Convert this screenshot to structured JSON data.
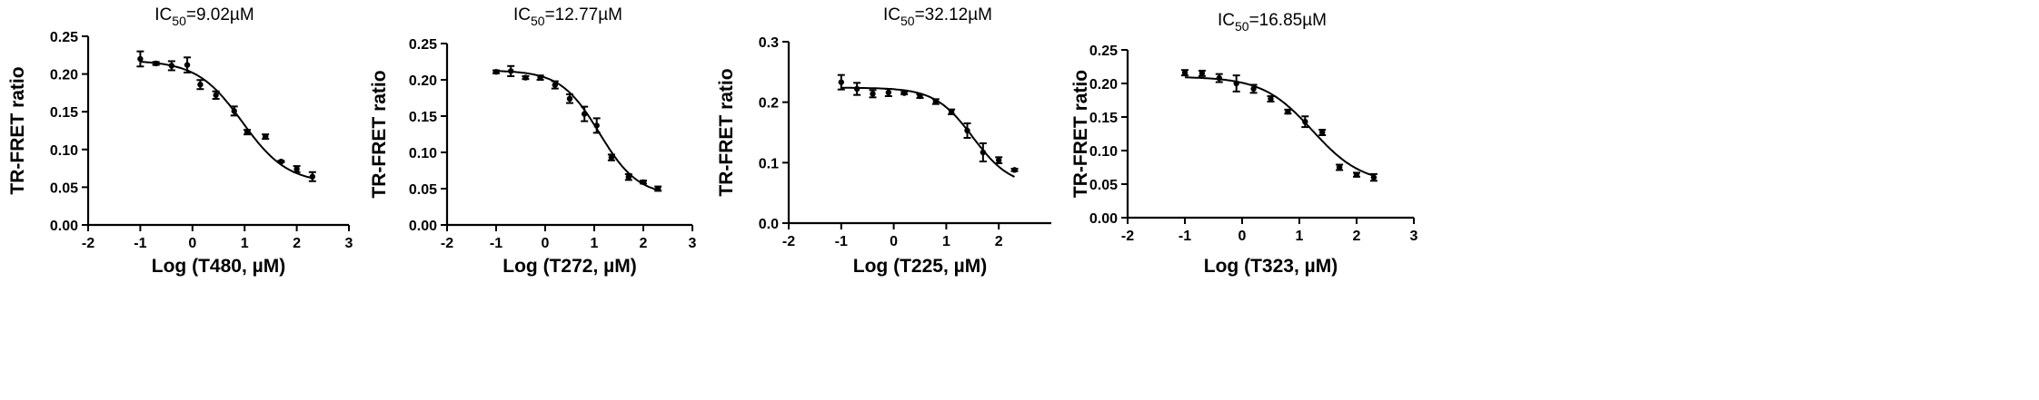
{
  "chart_data": [
    {
      "type": "scatter",
      "title": {
        "prefix": "IC",
        "sub": "50",
        "suffix": "=9.02µM"
      },
      "xlabel": "Log (T480, µM)",
      "ylabel": "TR-FRET ratio",
      "xlim": [
        -2,
        3
      ],
      "ylim": [
        0,
        0.25
      ],
      "xticks": [
        -2,
        -1,
        0,
        1,
        2,
        3
      ],
      "yticks": [
        0.0,
        0.05,
        0.1,
        0.15,
        0.2,
        0.25
      ],
      "ytick_labels": [
        "0.00",
        "0.05",
        "0.10",
        "0.15",
        "0.20",
        "0.25"
      ],
      "points": [
        {
          "x": -1.0,
          "y": 0.22,
          "err": 0.01
        },
        {
          "x": -0.7,
          "y": 0.214,
          "err": 0.002
        },
        {
          "x": -0.4,
          "y": 0.211,
          "err": 0.006
        },
        {
          "x": -0.1,
          "y": 0.212,
          "err": 0.01
        },
        {
          "x": 0.15,
          "y": 0.186,
          "err": 0.006
        },
        {
          "x": 0.45,
          "y": 0.172,
          "err": 0.005
        },
        {
          "x": 0.8,
          "y": 0.151,
          "err": 0.006
        },
        {
          "x": 1.05,
          "y": 0.123,
          "err": 0.003
        },
        {
          "x": 1.4,
          "y": 0.117,
          "err": 0.003
        },
        {
          "x": 1.7,
          "y": 0.084,
          "err": 0.001
        },
        {
          "x": 2.0,
          "y": 0.074,
          "err": 0.004
        },
        {
          "x": 2.3,
          "y": 0.064,
          "err": 0.006
        }
      ],
      "fit": {
        "top": 0.218,
        "bottom": 0.055,
        "logIC50": 0.955,
        "hill": 1.0
      }
    },
    {
      "type": "scatter",
      "title": {
        "prefix": "IC",
        "sub": "50",
        "suffix": "=12.77µM"
      },
      "xlabel": "Log (T272, µM)",
      "ylabel": "TR-FRET ratio",
      "xlim": [
        -2,
        3
      ],
      "ylim": [
        0,
        0.25
      ],
      "xticks": [
        -2,
        -1,
        0,
        1,
        2,
        3
      ],
      "yticks": [
        0.0,
        0.05,
        0.1,
        0.15,
        0.2,
        0.25
      ],
      "ytick_labels": [
        "0.00",
        "0.05",
        "0.10",
        "0.15",
        "0.20",
        "0.25"
      ],
      "points": [
        {
          "x": -1.0,
          "y": 0.211,
          "err": 0.002
        },
        {
          "x": -0.7,
          "y": 0.212,
          "err": 0.007
        },
        {
          "x": -0.4,
          "y": 0.203,
          "err": 0.002
        },
        {
          "x": -0.1,
          "y": 0.203,
          "err": 0.003
        },
        {
          "x": 0.2,
          "y": 0.193,
          "err": 0.005
        },
        {
          "x": 0.5,
          "y": 0.174,
          "err": 0.006
        },
        {
          "x": 0.8,
          "y": 0.153,
          "err": 0.01
        },
        {
          "x": 1.05,
          "y": 0.137,
          "err": 0.01
        },
        {
          "x": 1.35,
          "y": 0.093,
          "err": 0.004
        },
        {
          "x": 1.7,
          "y": 0.066,
          "err": 0.004
        },
        {
          "x": 2.0,
          "y": 0.059,
          "err": 0.002
        },
        {
          "x": 2.3,
          "y": 0.05,
          "err": 0.003
        }
      ],
      "fit": {
        "top": 0.213,
        "bottom": 0.04,
        "logIC50": 1.106,
        "hill": 1.1
      }
    },
    {
      "type": "scatter",
      "title": {
        "prefix": "IC",
        "sub": "50",
        "suffix": "=32.12µM"
      },
      "xlabel": "Log (T225, µM)",
      "ylabel": "TR-FRET ratio",
      "xlim": [
        -2,
        3
      ],
      "ylim": [
        0,
        0.3
      ],
      "xticks": [
        -2,
        -1,
        0,
        1,
        2
      ],
      "yticks": [
        0.0,
        0.1,
        0.2,
        0.3
      ],
      "ytick_labels": [
        "0.0",
        "0.1",
        "0.2",
        "0.3"
      ],
      "points": [
        {
          "x": -1.0,
          "y": 0.233,
          "err": 0.012
        },
        {
          "x": -0.7,
          "y": 0.222,
          "err": 0.01
        },
        {
          "x": -0.4,
          "y": 0.214,
          "err": 0.006
        },
        {
          "x": -0.1,
          "y": 0.216,
          "err": 0.006
        },
        {
          "x": 0.2,
          "y": 0.215,
          "err": 0.002
        },
        {
          "x": 0.5,
          "y": 0.21,
          "err": 0.003
        },
        {
          "x": 0.8,
          "y": 0.201,
          "err": 0.004
        },
        {
          "x": 1.1,
          "y": 0.184,
          "err": 0.004
        },
        {
          "x": 1.4,
          "y": 0.153,
          "err": 0.012
        },
        {
          "x": 1.7,
          "y": 0.117,
          "err": 0.015
        },
        {
          "x": 2.0,
          "y": 0.104,
          "err": 0.005
        },
        {
          "x": 2.3,
          "y": 0.088,
          "err": 0.002
        }
      ],
      "fit": {
        "top": 0.224,
        "bottom": 0.06,
        "logIC50": 1.507,
        "hill": 1.2
      }
    },
    {
      "type": "scatter",
      "title": {
        "prefix": "IC",
        "sub": "50",
        "suffix": "=16.85µM"
      },
      "xlabel": "Log (T323, µM)",
      "ylabel": "TR-FRET ratio",
      "xlim": [
        -2,
        3
      ],
      "ylim": [
        0,
        0.25
      ],
      "xticks": [
        -2,
        -1,
        0,
        1,
        2,
        3
      ],
      "yticks": [
        0.0,
        0.05,
        0.1,
        0.15,
        0.2,
        0.25
      ],
      "ytick_labels": [
        "0.00",
        "0.05",
        "0.10",
        "0.15",
        "0.20",
        "0.25"
      ],
      "points": [
        {
          "x": -1.0,
          "y": 0.216,
          "err": 0.004
        },
        {
          "x": -0.7,
          "y": 0.215,
          "err": 0.004
        },
        {
          "x": -0.4,
          "y": 0.208,
          "err": 0.006
        },
        {
          "x": -0.1,
          "y": 0.2,
          "err": 0.012
        },
        {
          "x": 0.2,
          "y": 0.192,
          "err": 0.006
        },
        {
          "x": 0.5,
          "y": 0.177,
          "err": 0.004
        },
        {
          "x": 0.8,
          "y": 0.158,
          "err": 0.003
        },
        {
          "x": 1.1,
          "y": 0.143,
          "err": 0.008
        },
        {
          "x": 1.4,
          "y": 0.127,
          "err": 0.004
        },
        {
          "x": 1.7,
          "y": 0.075,
          "err": 0.004
        },
        {
          "x": 2.0,
          "y": 0.064,
          "err": 0.003
        },
        {
          "x": 2.3,
          "y": 0.06,
          "err": 0.005
        }
      ],
      "fit": {
        "top": 0.21,
        "bottom": 0.05,
        "logIC50": 1.227,
        "hill": 1.0
      }
    }
  ]
}
